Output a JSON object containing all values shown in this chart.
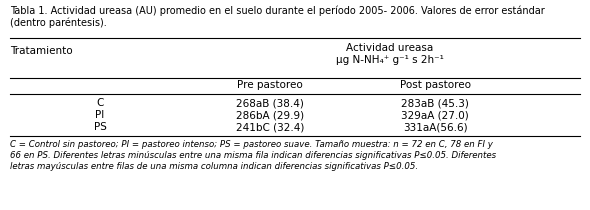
{
  "title_line1": "Tabla 1. Actividad ureasa (AU) promedio en el suelo durante el período 2005- 2006. Valores de error estándar",
  "title_line2": "(dentro paréntesis).",
  "header_main": "Actividad ureasa",
  "header_sub": "μg N-NH₄⁺ g⁻¹ s 2h⁻¹",
  "col_treatment": "Tratamiento",
  "col_pre": "Pre pastoreo",
  "col_post": "Post pastoreo",
  "rows": [
    {
      "trt": "C",
      "pre": "268aB (38.4)",
      "post": "283aB (45.3)"
    },
    {
      "trt": "PI",
      "pre": "286bA (29.9)",
      "post": "329aA (27.0)"
    },
    {
      "trt": "PS",
      "pre": "241bC (32.4)",
      "post": "331aA(56.6)"
    }
  ],
  "footnote_lines": [
    "C = Control sin pastoreo; PI = pastoreo intenso; PS = pastoreo suave. Tamaño muestra: n = 72 en C, 78 en FI y",
    "66 en PS. Diferentes letras minúsculas entre una misma fila indican diferencias significativas P≤0.05. Diferentes",
    "letras mayúsculas entre filas de una misma columna indican diferencias significativas P≤0.05."
  ],
  "bg_color": "#ffffff",
  "text_color": "#000000",
  "line_color": "#000000",
  "title_fs": 7.0,
  "header_fs": 7.5,
  "data_fs": 7.5,
  "footnote_fs": 6.2,
  "fig_width": 5.9,
  "fig_height": 2.1,
  "dpi": 100
}
